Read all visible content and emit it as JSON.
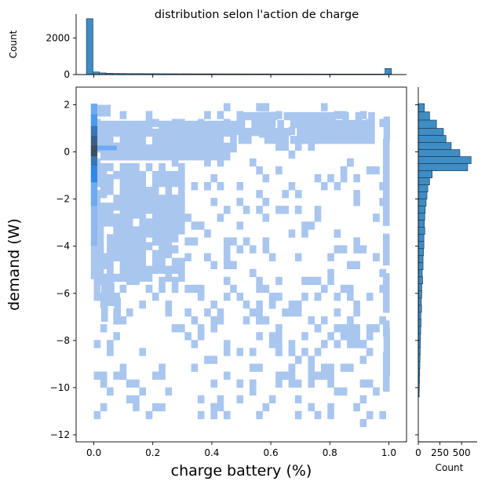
{
  "chart_data": {
    "type": "heatmap",
    "title": "distribution selon l'action de charge",
    "joint": {
      "xlabel": "charge battery (%)",
      "ylabel": "demand (W)",
      "xlim": [
        -0.06,
        1.06
      ],
      "ylim": [
        -12.3,
        2.75
      ],
      "x_ticks": [
        0.0,
        0.2,
        0.4,
        0.6,
        0.8,
        1.0
      ],
      "x_tick_labels": [
        "0.0",
        "0.2",
        "0.4",
        "0.6",
        "0.8",
        "1.0"
      ],
      "y_ticks": [
        2,
        0,
        -2,
        -4,
        -6,
        -8,
        -10,
        -12
      ],
      "y_tick_labels": [
        "2",
        "0",
        "−2",
        "−4",
        "−6",
        "−8",
        "−10",
        "−12"
      ],
      "bin_width_x": 0.022,
      "bin_width_y": 0.335,
      "cells": [
        {
          "x": -0.01,
          "y": 1.6,
          "w": 0.022,
          "h": 0.45,
          "level": 3
        },
        {
          "x": -0.01,
          "y": 1.1,
          "w": 0.022,
          "h": 0.5,
          "level": 4
        },
        {
          "x": -0.01,
          "y": 0.7,
          "w": 0.022,
          "h": 0.4,
          "level": 6
        },
        {
          "x": -0.01,
          "y": 0.3,
          "w": 0.022,
          "h": 0.4,
          "level": 7
        },
        {
          "x": -0.01,
          "y": -0.2,
          "w": 0.022,
          "h": 0.5,
          "level": 8
        },
        {
          "x": -0.01,
          "y": -0.6,
          "w": 0.022,
          "h": 0.4,
          "level": 6
        },
        {
          "x": -0.01,
          "y": -1.3,
          "w": 0.022,
          "h": 0.7,
          "level": 5
        },
        {
          "x": -0.01,
          "y": -2.3,
          "w": 0.022,
          "h": 1.0,
          "level": 3
        },
        {
          "x": -0.01,
          "y": -4.0,
          "w": 0.022,
          "h": 1.7,
          "level": 2
        },
        {
          "x": -0.01,
          "y": -5.4,
          "w": 0.022,
          "h": 1.4,
          "level": 1
        },
        {
          "x": 0.012,
          "y": 0.07,
          "w": 0.066,
          "h": 0.2,
          "level": 3
        },
        {
          "x": 0.012,
          "y": 1.5,
          "w": 0.045,
          "h": 0.5,
          "level": 1
        },
        {
          "x": 0.012,
          "y": -1.2,
          "w": 0.022,
          "h": 0.6,
          "level": 1
        },
        {
          "x": 0.012,
          "y": -5.2,
          "w": 0.022,
          "h": 2.4,
          "level": 1
        },
        {
          "x": 0.56,
          "y": 0.6,
          "w": 0.055,
          "h": 1.1,
          "level": 1
        },
        {
          "x": 0.982,
          "y": 0.5,
          "w": 0.022,
          "h": 1.0,
          "level": 1
        },
        {
          "x": 0.982,
          "y": -9.5,
          "w": 0.022,
          "h": 2.0,
          "level": 1
        }
      ],
      "blocks": [
        {
          "x0": 0.0,
          "x1": 0.49,
          "y0": -0.35,
          "y1": 1.45
        },
        {
          "x0": 0.49,
          "x1": 0.96,
          "y0": 0.35,
          "y1": 1.7
        },
        {
          "x0": 0.0,
          "x1": 0.31,
          "y0": -5.5,
          "y1": -0.35
        },
        {
          "x0": 0.025,
          "x1": 0.09,
          "y0": -7.2,
          "y1": -5.4
        },
        {
          "x0": 0.98,
          "x1": 1.005,
          "y0": -10.5,
          "y1": 0.7
        }
      ],
      "scatter_seed": 7,
      "scatter_count": 430
    },
    "top_marginal": {
      "ylabel": "Count",
      "ylim": [
        0,
        3300
      ],
      "y_ticks": [
        0,
        2000
      ],
      "y_tick_labels": [
        "0",
        "2000"
      ],
      "bin_edges": [
        -0.025,
        -0.003,
        0.019,
        0.041,
        0.063,
        0.085,
        0.107,
        0.129,
        0.151,
        0.173,
        0.195,
        0.217,
        0.239,
        0.261,
        0.283,
        0.305,
        0.327,
        0.349,
        0.371,
        0.393,
        0.415,
        0.437,
        0.459,
        0.481,
        0.503,
        0.525,
        0.547,
        0.569,
        0.591,
        0.613,
        0.635,
        0.657,
        0.679,
        0.701,
        0.723,
        0.745,
        0.767,
        0.789,
        0.811,
        0.833,
        0.855,
        0.877,
        0.899,
        0.921,
        0.943,
        0.965,
        0.987,
        1.009
      ],
      "counts": [
        3050,
        140,
        90,
        70,
        60,
        55,
        50,
        50,
        50,
        48,
        46,
        44,
        42,
        41,
        40,
        40,
        39,
        38,
        37,
        37,
        36,
        35,
        35,
        34,
        34,
        33,
        33,
        32,
        32,
        31,
        31,
        30,
        30,
        30,
        29,
        29,
        28,
        28,
        28,
        28,
        27,
        27,
        26,
        26,
        25,
        25,
        330
      ]
    },
    "right_marginal": {
      "xlabel": "Count",
      "xlim": [
        0,
        680
      ],
      "x_ticks": [
        0,
        250,
        500
      ],
      "x_tick_labels": [
        "0",
        "250",
        "500"
      ],
      "bin_edges": [
        2.05,
        1.7,
        1.35,
        1.0,
        0.7,
        0.4,
        0.1,
        -0.2,
        -0.5,
        -0.8,
        -1.1,
        -1.4,
        -1.7,
        -2.0,
        -2.3,
        -2.6,
        -2.9,
        -3.2,
        -3.5,
        -3.8,
        -4.1,
        -4.4,
        -4.7,
        -5.0,
        -5.3,
        -5.6,
        -5.9,
        -6.2,
        -6.5,
        -6.8,
        -7.1,
        -7.4,
        -7.7,
        -8.0,
        -8.3,
        -8.6,
        -8.9,
        -9.2,
        -9.5,
        -9.8,
        -10.1,
        -10.4
      ],
      "counts": [
        70,
        130,
        210,
        290,
        320,
        380,
        480,
        610,
        570,
        160,
        130,
        110,
        100,
        90,
        80,
        75,
        70,
        75,
        65,
        65,
        60,
        55,
        55,
        45,
        50,
        40,
        40,
        35,
        38,
        30,
        32,
        28,
        26,
        24,
        22,
        20,
        18,
        16,
        14,
        12,
        10
      ]
    }
  }
}
